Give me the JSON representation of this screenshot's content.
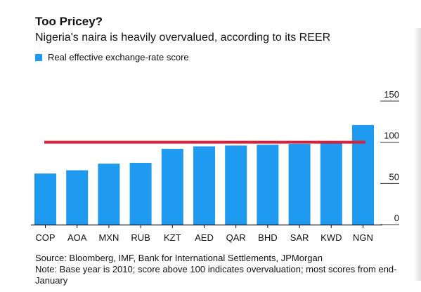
{
  "header": {
    "title": "Too Pricey?",
    "subtitle": "Nigeria's naira is heavily overvalued, according to its REER"
  },
  "legend": {
    "label": "Real effective exchange-rate score",
    "color": "#1e9af0"
  },
  "chart_data": {
    "type": "bar",
    "title": "Too Pricey?",
    "subtitle": "Nigeria's naira is heavily overvalued, according to its REER",
    "categories": [
      "COP",
      "AOA",
      "MXN",
      "RUB",
      "KZT",
      "AED",
      "QAR",
      "BHD",
      "SAR",
      "KWD",
      "NGN"
    ],
    "series": [
      {
        "name": "Real effective exchange-rate score",
        "values": [
          62,
          66,
          74,
          75,
          92,
          95,
          96,
          97,
          98,
          100,
          121
        ],
        "color": "#1e9af0"
      }
    ],
    "reference_line": {
      "value": 100,
      "color": "#d6213a"
    },
    "ylim": [
      0,
      150
    ],
    "yticks": [
      0,
      50,
      100,
      150
    ],
    "ytick_labels": [
      "0",
      "50",
      "100",
      "150"
    ],
    "y_axis_position": "right",
    "grid": false,
    "legend_position": "top-left"
  },
  "footer": {
    "source": "Source: Bloomberg, IMF, Bank for International Settlements, JPMorgan",
    "note": "Note: Base year is 2010; score above 100 indicates overvaluation; most scores from end-January"
  }
}
